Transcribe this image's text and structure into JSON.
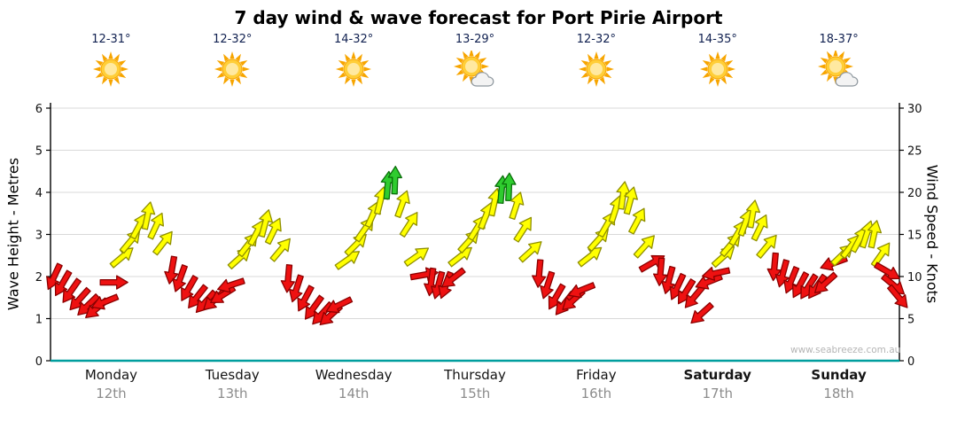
{
  "title": "7 day wind & wave forecast for Port Pirie Airport",
  "watermark": "www.seabreeze.com.au",
  "axes": {
    "left_label": "Wave Height - Metres",
    "right_label": "Wind Speed - Knots",
    "left_ticks": [
      0,
      1,
      2,
      3,
      4,
      5,
      6
    ],
    "right_ticks": [
      0,
      5,
      10,
      15,
      20,
      25,
      30
    ],
    "left_max": 6,
    "right_max": 30
  },
  "days": [
    {
      "name": "Monday",
      "date": "12th",
      "temp": "12-31°",
      "icon": "sun",
      "weekend": false
    },
    {
      "name": "Tuesday",
      "date": "13th",
      "temp": "12-32°",
      "icon": "sun",
      "weekend": false
    },
    {
      "name": "Wednesday",
      "date": "14th",
      "temp": "14-32°",
      "icon": "sun",
      "weekend": false
    },
    {
      "name": "Thursday",
      "date": "15th",
      "temp": "13-29°",
      "icon": "sun-cloud",
      "weekend": false
    },
    {
      "name": "Friday",
      "date": "16th",
      "temp": "12-32°",
      "icon": "sun",
      "weekend": false
    },
    {
      "name": "Saturday",
      "date": "17th",
      "temp": "14-35°",
      "icon": "sun",
      "weekend": true
    },
    {
      "name": "Sunday",
      "date": "18th",
      "temp": "18-37°",
      "icon": "sun-cloud",
      "weekend": true
    }
  ],
  "chart_data": {
    "type": "scatter",
    "subtype": "wind-arrow-forecast",
    "title": "7 day wind & wave forecast for Port Pirie Airport",
    "x_axis": {
      "label": "Days (Monday 12th - Sunday 18th)",
      "range": [
        0,
        7
      ]
    },
    "wind_axis": {
      "label": "Wind Speed - Knots",
      "min": 0,
      "max": 30,
      "ticks": [
        0,
        5,
        10,
        15,
        20,
        25,
        30
      ]
    },
    "wave_axis": {
      "label": "Wave Height - Metres",
      "min": 0,
      "max": 6,
      "ticks": [
        0,
        1,
        2,
        3,
        4,
        5,
        6
      ]
    },
    "grid": true,
    "legend": false,
    "point_format": "[time_in_days_from_monday_start, wind_speed_knots, arrow_direction_deg_clockwise_from_up]",
    "color_thresholds": {
      "yellow_from_kt": 12,
      "green_from_kt": 20
    },
    "points": [
      [
        0.03,
        10.0,
        205
      ],
      [
        0.1,
        9.2,
        210
      ],
      [
        0.17,
        8.3,
        215
      ],
      [
        0.24,
        7.3,
        222
      ],
      [
        0.31,
        6.6,
        226
      ],
      [
        0.38,
        6.2,
        230
      ],
      [
        0.45,
        7.0,
        248
      ],
      [
        0.52,
        9.3,
        90
      ],
      [
        0.59,
        12.3,
        50
      ],
      [
        0.66,
        14.2,
        40
      ],
      [
        0.73,
        16.0,
        28
      ],
      [
        0.8,
        17.2,
        12
      ],
      [
        0.87,
        16.0,
        25
      ],
      [
        0.93,
        14.0,
        38
      ],
      [
        1.0,
        10.8,
        190
      ],
      [
        1.07,
        9.8,
        200
      ],
      [
        1.14,
        8.6,
        210
      ],
      [
        1.21,
        7.6,
        218
      ],
      [
        1.28,
        7.0,
        222
      ],
      [
        1.35,
        7.2,
        228
      ],
      [
        1.42,
        7.8,
        238
      ],
      [
        1.49,
        9.0,
        252
      ],
      [
        1.56,
        12.2,
        48
      ],
      [
        1.63,
        13.8,
        38
      ],
      [
        1.7,
        15.2,
        28
      ],
      [
        1.77,
        16.3,
        15
      ],
      [
        1.84,
        15.4,
        26
      ],
      [
        1.9,
        13.2,
        40
      ],
      [
        1.96,
        9.8,
        185
      ],
      [
        2.03,
        8.6,
        198
      ],
      [
        2.1,
        7.4,
        208
      ],
      [
        2.17,
        6.3,
        216
      ],
      [
        2.24,
        5.6,
        222
      ],
      [
        2.31,
        5.4,
        228
      ],
      [
        2.38,
        6.6,
        244
      ],
      [
        2.45,
        12.0,
        55
      ],
      [
        2.52,
        13.8,
        45
      ],
      [
        2.59,
        15.6,
        35
      ],
      [
        2.66,
        17.4,
        24
      ],
      [
        2.72,
        19.0,
        14
      ],
      [
        2.78,
        20.8,
        5
      ],
      [
        2.84,
        21.4,
        2
      ],
      [
        2.9,
        18.6,
        20
      ],
      [
        2.96,
        16.2,
        33
      ],
      [
        3.02,
        12.4,
        55
      ],
      [
        3.08,
        10.2,
        80
      ],
      [
        3.14,
        9.4,
        188
      ],
      [
        3.2,
        9.0,
        195
      ],
      [
        3.26,
        9.0,
        200
      ],
      [
        3.32,
        9.8,
        232
      ],
      [
        3.38,
        12.4,
        52
      ],
      [
        3.45,
        14.2,
        42
      ],
      [
        3.52,
        15.8,
        32
      ],
      [
        3.59,
        17.2,
        22
      ],
      [
        3.66,
        18.8,
        12
      ],
      [
        3.72,
        20.3,
        5
      ],
      [
        3.78,
        20.6,
        2
      ],
      [
        3.84,
        18.4,
        18
      ],
      [
        3.9,
        15.6,
        33
      ],
      [
        3.96,
        13.0,
        48
      ],
      [
        4.03,
        10.4,
        185
      ],
      [
        4.1,
        9.0,
        198
      ],
      [
        4.17,
        7.6,
        210
      ],
      [
        4.24,
        6.8,
        218
      ],
      [
        4.31,
        7.2,
        228
      ],
      [
        4.38,
        8.4,
        248
      ],
      [
        4.45,
        12.4,
        52
      ],
      [
        4.52,
        14.4,
        42
      ],
      [
        4.59,
        16.2,
        30
      ],
      [
        4.66,
        18.0,
        18
      ],
      [
        4.72,
        19.6,
        8
      ],
      [
        4.78,
        19.0,
        15
      ],
      [
        4.84,
        16.6,
        28
      ],
      [
        4.9,
        13.6,
        42
      ],
      [
        4.96,
        11.6,
        60
      ],
      [
        5.03,
        10.6,
        185
      ],
      [
        5.1,
        9.6,
        195
      ],
      [
        5.17,
        8.8,
        205
      ],
      [
        5.24,
        8.2,
        212
      ],
      [
        5.31,
        7.6,
        220
      ],
      [
        5.37,
        5.6,
        228
      ],
      [
        5.43,
        9.4,
        248
      ],
      [
        5.49,
        10.4,
        258
      ],
      [
        5.55,
        12.4,
        48
      ],
      [
        5.61,
        13.8,
        40
      ],
      [
        5.67,
        15.2,
        30
      ],
      [
        5.73,
        16.4,
        20
      ],
      [
        5.79,
        17.4,
        10
      ],
      [
        5.85,
        15.8,
        26
      ],
      [
        5.91,
        13.6,
        40
      ],
      [
        5.97,
        11.2,
        185
      ],
      [
        6.04,
        10.4,
        195
      ],
      [
        6.11,
        9.6,
        202
      ],
      [
        6.18,
        9.0,
        208
      ],
      [
        6.25,
        8.8,
        212
      ],
      [
        6.32,
        8.8,
        215
      ],
      [
        6.39,
        9.2,
        228
      ],
      [
        6.46,
        11.6,
        250
      ],
      [
        6.53,
        12.6,
        46
      ],
      [
        6.6,
        13.6,
        38
      ],
      [
        6.67,
        14.4,
        28
      ],
      [
        6.73,
        15.0,
        18
      ],
      [
        6.79,
        15.0,
        12
      ],
      [
        6.85,
        12.6,
        35
      ],
      [
        6.9,
        10.6,
        120
      ],
      [
        6.95,
        9.0,
        130
      ],
      [
        6.99,
        7.6,
        140
      ]
    ]
  },
  "colors": {
    "grid": "#d9d9d9",
    "axis": "#000000",
    "bottom_axis": "#009e9e",
    "arrow_red_fill": "#ee1111",
    "arrow_red_stroke": "#8a0000",
    "arrow_yellow_fill": "#ffff00",
    "arrow_yellow_stroke": "#8f8f00",
    "arrow_green_fill": "#2fcc2f",
    "arrow_green_stroke": "#0a6e0a",
    "sun_ray": "#f7a500",
    "sun_mid": "#ffce38",
    "sun_core": "#ffe9a0",
    "cloud_fill": "#f3f3f3",
    "cloud_stroke": "#8e979e",
    "temp_text": "#102050",
    "date_text": "#8c8c8c"
  }
}
